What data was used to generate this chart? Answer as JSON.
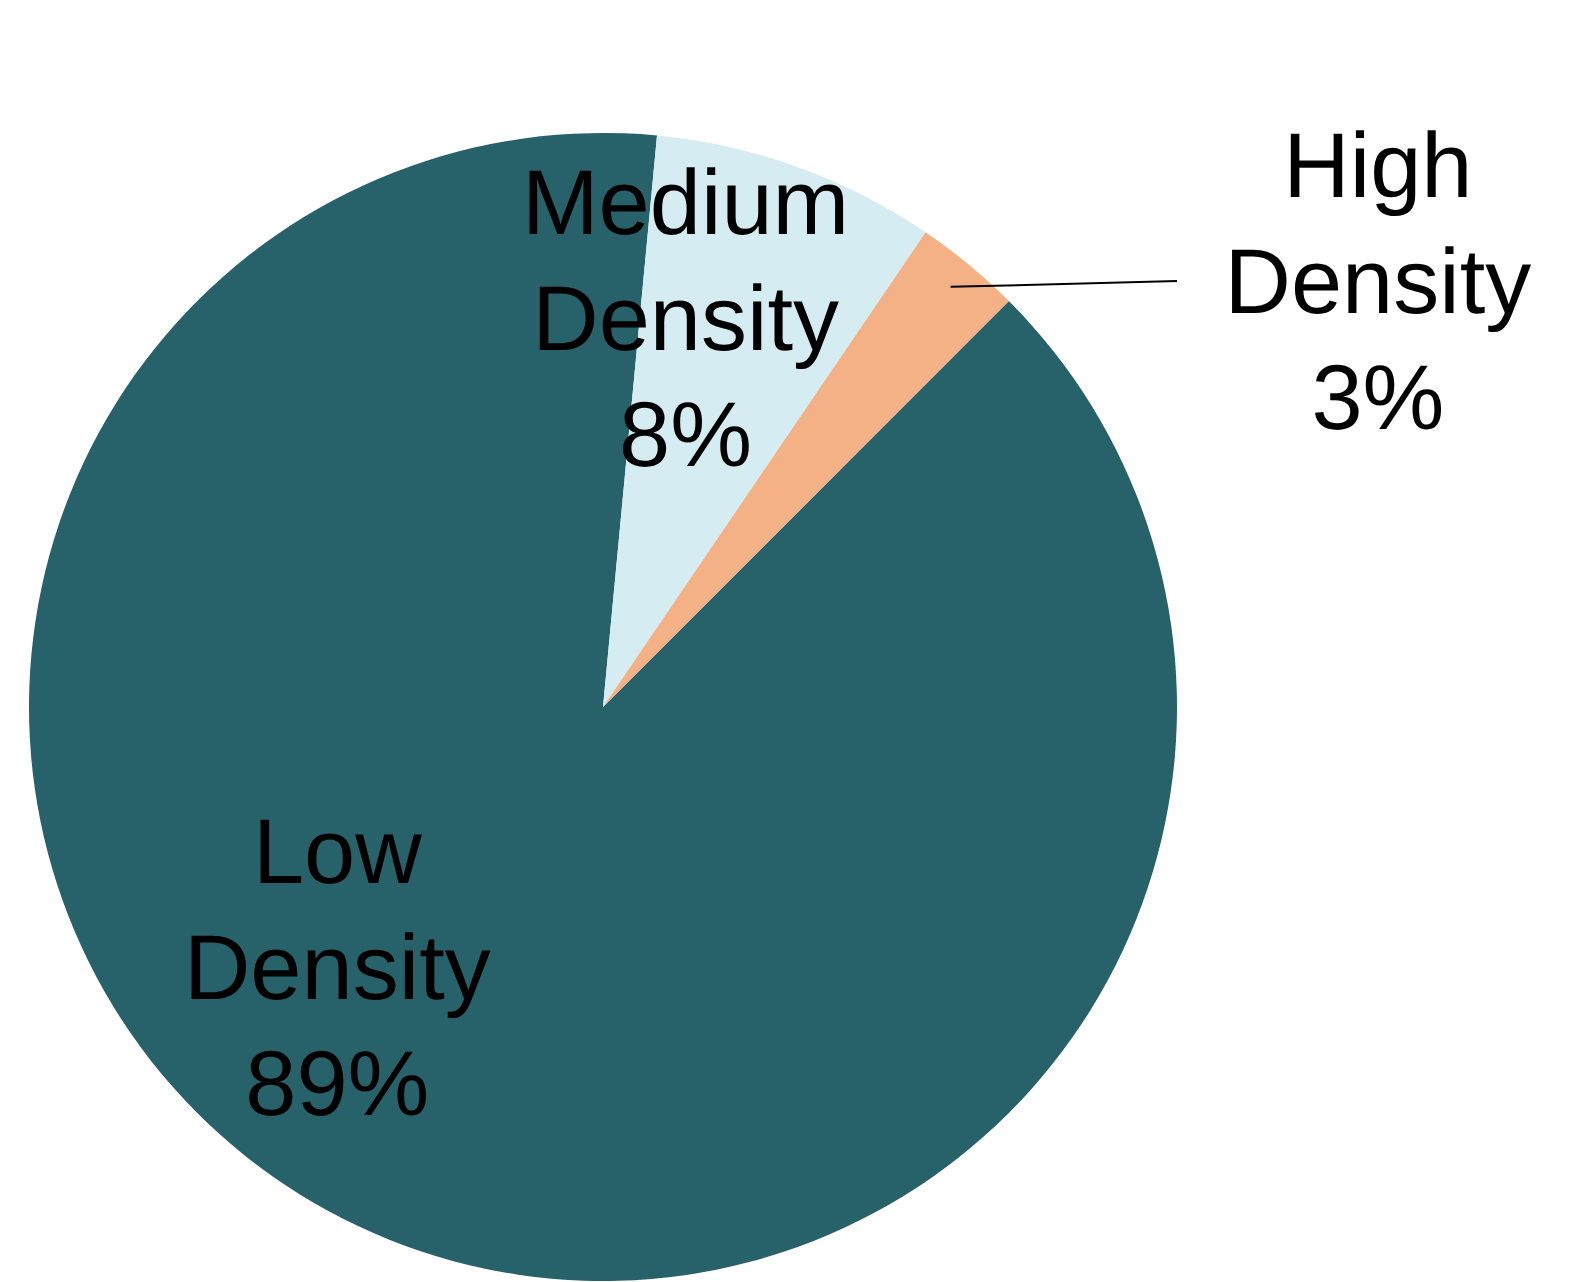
{
  "chart_data": {
    "type": "pie",
    "categories": [
      "Low Density",
      "Medium Density",
      "High Density"
    ],
    "values": [
      89,
      8,
      3
    ],
    "colors": [
      "#276169",
      "#d4ecf2",
      "#f3b185"
    ],
    "value_labels": [
      "89%",
      "8%",
      "3%"
    ]
  }
}
